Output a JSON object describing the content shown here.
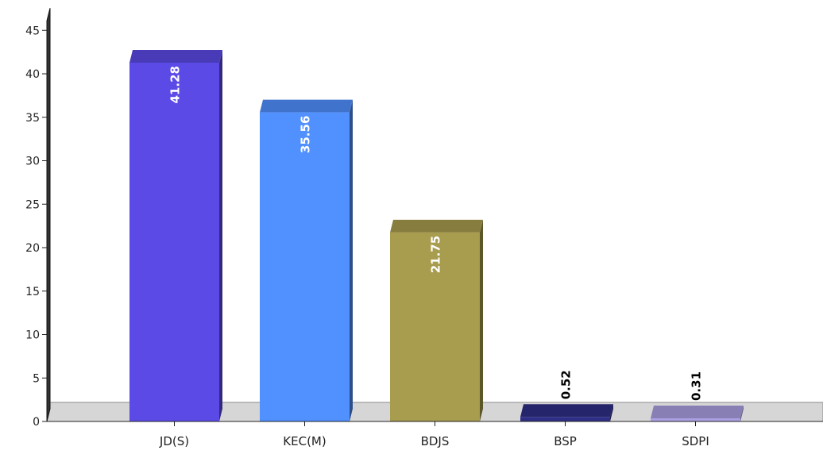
{
  "chart_data": {
    "type": "bar",
    "categories": [
      "JD(S)",
      "KEC(M)",
      "BDJS",
      "BSP",
      "SDPI"
    ],
    "values": [
      41.28,
      35.56,
      21.75,
      0.52,
      0.31
    ],
    "value_labels": [
      "41.28",
      "35.56",
      "21.75",
      "0.52",
      "0.31"
    ],
    "colors": [
      "#5b4ae6",
      "#5090ff",
      "#a89c4e",
      "#2e2e86",
      "#aa9fe2"
    ],
    "ylim": [
      0,
      45
    ],
    "yticks": [
      "0",
      "5",
      "10",
      "15",
      "20",
      "25",
      "30",
      "35",
      "40",
      "45"
    ],
    "title": "",
    "xlabel": "",
    "ylabel": "",
    "style": "3d",
    "grid": false,
    "legend": "none"
  }
}
